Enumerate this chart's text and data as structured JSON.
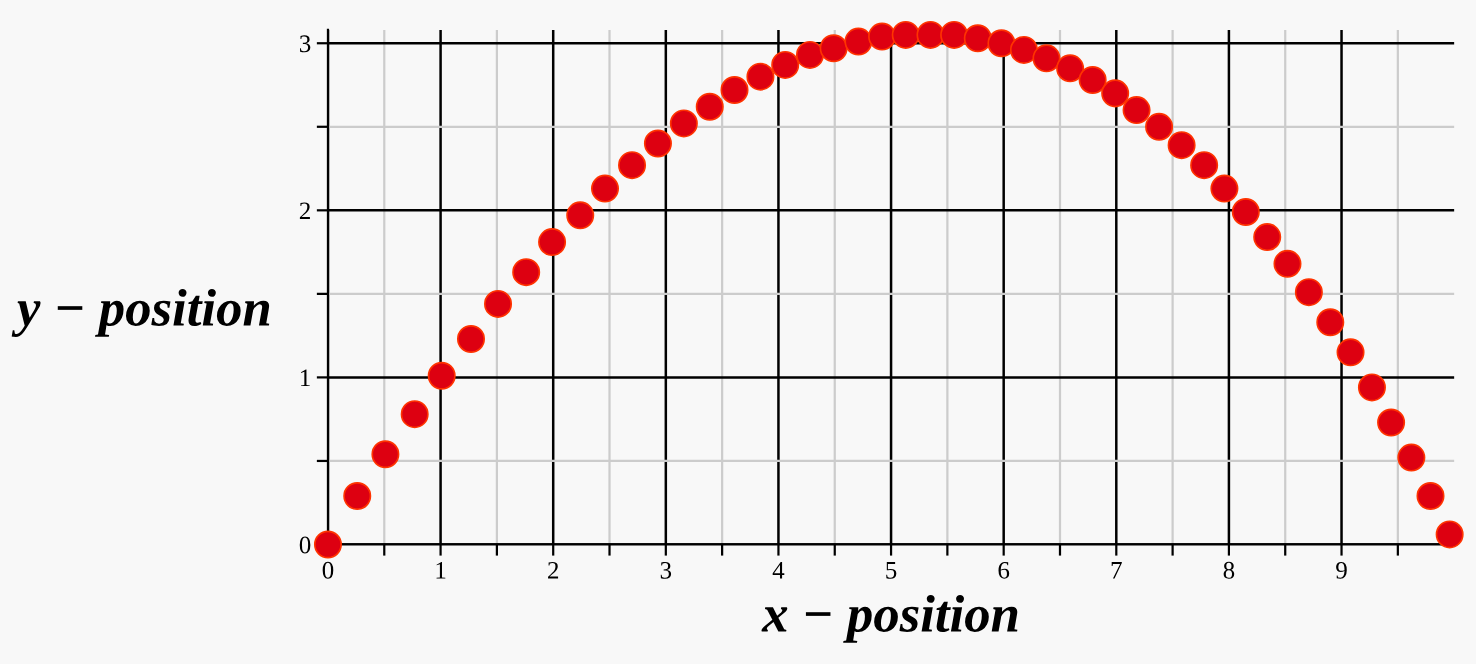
{
  "chart_data": {
    "type": "scatter",
    "xlabel": "x − position",
    "ylabel": "y − position",
    "x": [
      0,
      0.26,
      0.51,
      0.77,
      1.01,
      1.27,
      1.51,
      1.76,
      1.99,
      2.24,
      2.46,
      2.7,
      2.93,
      3.16,
      3.39,
      3.61,
      3.84,
      4.06,
      4.28,
      4.49,
      4.71,
      4.92,
      5.13,
      5.35,
      5.56,
      5.77,
      5.98,
      6.18,
      6.38,
      6.59,
      6.79,
      6.99,
      7.18,
      7.38,
      7.58,
      7.78,
      7.96,
      8.15,
      8.34,
      8.52,
      8.71,
      8.9,
      9.08,
      9.27,
      9.44,
      9.62,
      9.79,
      9.96
    ],
    "series": [
      {
        "color": "#dd0011",
        "values": [
          0,
          0.29,
          0.54,
          0.78,
          1.01,
          1.23,
          1.44,
          1.63,
          1.81,
          1.97,
          2.13,
          2.27,
          2.4,
          2.52,
          2.62,
          2.72,
          2.8,
          2.87,
          2.93,
          2.97,
          3.01,
          3.04,
          3.05,
          3.05,
          3.05,
          3.03,
          3.0,
          2.96,
          2.91,
          2.85,
          2.78,
          2.7,
          2.6,
          2.5,
          2.39,
          2.27,
          2.13,
          1.99,
          1.84,
          1.68,
          1.51,
          1.33,
          1.15,
          0.94,
          0.73,
          0.52,
          0.29,
          0.06
        ]
      }
    ],
    "xlim": [
      0,
      10
    ],
    "ylim": [
      0,
      3.08
    ],
    "xticks": [
      0,
      {
        "value": 0.5,
        "label": null
      },
      1,
      {
        "value": 1.5,
        "label": null
      },
      2,
      {
        "value": 2.5,
        "label": null
      },
      3,
      {
        "value": 3.5,
        "label": null
      },
      4,
      {
        "value": 4.5,
        "label": null
      },
      5,
      {
        "value": 5.5,
        "label": null
      },
      6,
      {
        "value": 6.5,
        "label": null
      },
      7,
      {
        "value": 7.5,
        "label": null
      },
      8,
      {
        "value": 8.5,
        "label": null
      },
      9,
      {
        "value": 9.5,
        "label": null
      }
    ],
    "yticks": [
      0,
      {
        "value": 0.5,
        "label": null
      },
      1,
      {
        "value": 1.5,
        "label": null
      },
      2,
      {
        "value": 2.5,
        "label": null
      },
      3
    ],
    "grid": true,
    "marker": "circle"
  }
}
